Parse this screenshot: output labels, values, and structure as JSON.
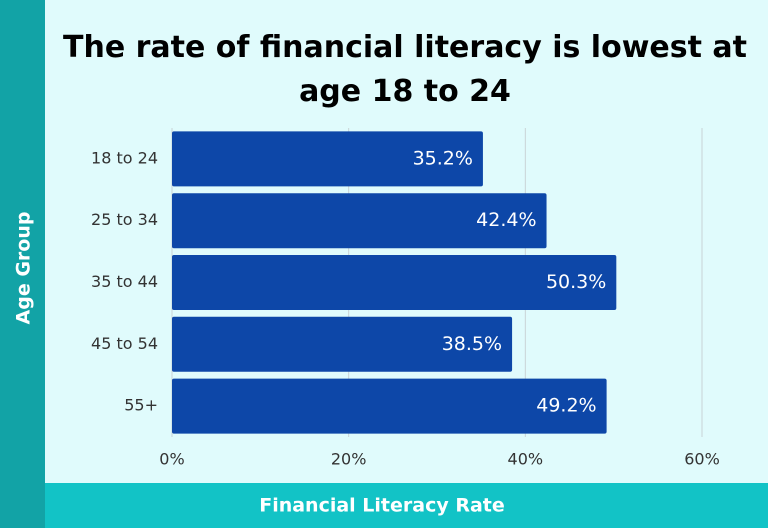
{
  "chart_data": {
    "type": "bar",
    "orientation": "horizontal",
    "title": "The rate of financial literacy is lowest at age 18 to 24",
    "xlabel": "Financial Literacy Rate",
    "ylabel": "Age Group",
    "categories": [
      "18 to 24",
      "25 to 34",
      "35 to 44",
      "45 to 54",
      "55+"
    ],
    "values": [
      35.2,
      42.4,
      50.3,
      38.5,
      49.2
    ],
    "value_labels": [
      "35.2%",
      "42.4%",
      "50.3%",
      "38.5%",
      "49.2%"
    ],
    "color": "#0d47a8",
    "xlim": [
      0,
      60
    ],
    "xticks": [
      {
        "value": 0,
        "label": "0%"
      },
      {
        "value": 20,
        "label": "20%"
      },
      {
        "value": 40,
        "label": "40%"
      },
      {
        "value": 60,
        "label": "60%"
      }
    ],
    "grid": true
  }
}
